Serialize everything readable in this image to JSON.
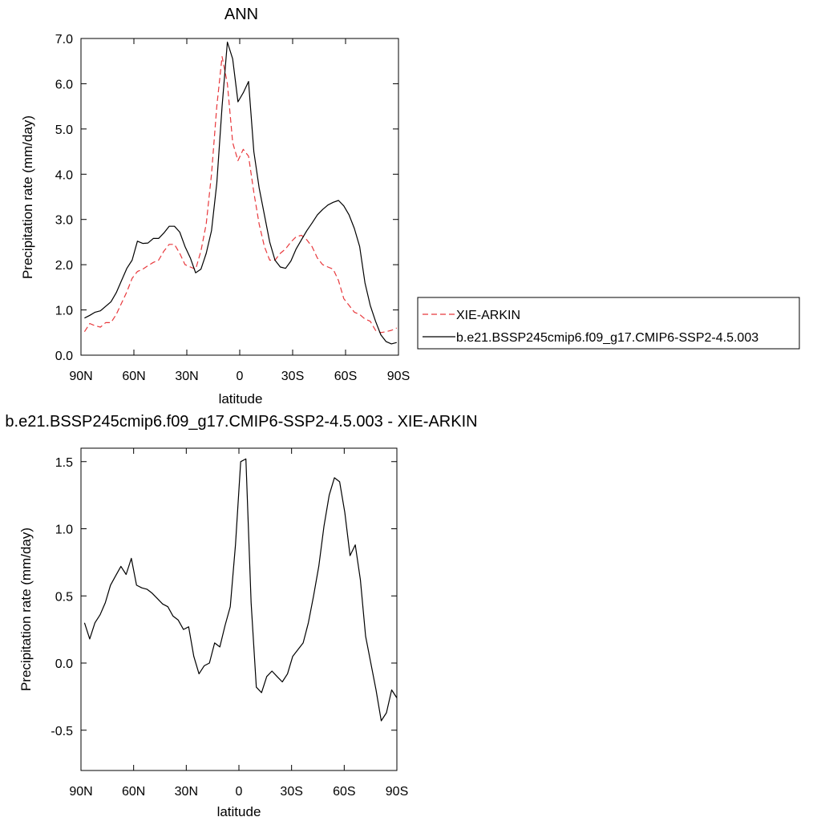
{
  "chart_data": [
    {
      "type": "line",
      "title": "ANN",
      "xlabel": "latitude",
      "ylabel": "Precipitation rate (mm/day)",
      "xlim": [
        -90,
        90
      ],
      "ylim": [
        0,
        7
      ],
      "xticks": [
        -90,
        -60,
        -30,
        0,
        30,
        60,
        90
      ],
      "xtick_labels": [
        "90N",
        "60N",
        "30N",
        "0",
        "30S",
        "60S",
        "90S"
      ],
      "yticks": [
        0,
        1,
        2,
        3,
        4,
        5,
        6,
        7
      ],
      "ytick_labels": [
        "0.0",
        "1.0",
        "2.0",
        "3.0",
        "4.0",
        "5.0",
        "6.0",
        "7.0"
      ],
      "grid": false,
      "legend": "right, outside plot",
      "x": [
        -88,
        -85,
        -82,
        -79,
        -76,
        -73,
        -70,
        -67,
        -64,
        -61,
        -58,
        -55,
        -52,
        -49,
        -46,
        -43,
        -40,
        -37,
        -34,
        -31,
        -28,
        -25,
        -22,
        -19,
        -16,
        -13,
        -10,
        -7,
        -4,
        -1,
        2,
        5,
        8,
        11,
        14,
        17,
        20,
        23,
        26,
        29,
        32,
        35,
        38,
        41,
        44,
        47,
        50,
        53,
        56,
        59,
        62,
        65,
        68,
        71,
        74,
        77,
        80,
        83,
        86,
        89
      ],
      "series": [
        {
          "name": "XIE-ARKIN",
          "color": "#e8383c",
          "dash": "dashed",
          "values": [
            0.52,
            0.7,
            0.65,
            0.62,
            0.72,
            0.72,
            0.9,
            1.15,
            1.4,
            1.7,
            1.85,
            1.9,
            1.98,
            2.05,
            2.1,
            2.3,
            2.45,
            2.45,
            2.25,
            2.0,
            1.95,
            1.9,
            2.3,
            2.9,
            4.0,
            5.5,
            6.6,
            6.0,
            4.7,
            4.3,
            4.55,
            4.4,
            3.6,
            2.9,
            2.4,
            2.1,
            2.1,
            2.25,
            2.35,
            2.5,
            2.62,
            2.65,
            2.55,
            2.4,
            2.15,
            2.0,
            1.95,
            1.9,
            1.65,
            1.25,
            1.1,
            0.95,
            0.9,
            0.8,
            0.75,
            0.55,
            0.5,
            0.52,
            0.55,
            0.6
          ]
        },
        {
          "name": "b.e21.BSSP245cmip6.f09_g17.CMIP6-SSP2-4.5.003",
          "color": "#000000",
          "dash": "solid",
          "values": [
            0.82,
            0.88,
            0.95,
            0.98,
            1.08,
            1.18,
            1.38,
            1.65,
            1.92,
            2.1,
            2.52,
            2.47,
            2.48,
            2.58,
            2.58,
            2.7,
            2.85,
            2.85,
            2.72,
            2.4,
            2.15,
            1.82,
            1.9,
            2.25,
            2.75,
            3.8,
            5.5,
            6.92,
            6.55,
            5.6,
            5.8,
            6.05,
            4.5,
            3.7,
            3.1,
            2.5,
            2.1,
            1.95,
            1.92,
            2.08,
            2.35,
            2.55,
            2.75,
            2.92,
            3.1,
            3.22,
            3.32,
            3.38,
            3.42,
            3.3,
            3.1,
            2.8,
            2.4,
            1.6,
            1.1,
            0.75,
            0.45,
            0.3,
            0.25,
            0.28
          ]
        }
      ]
    },
    {
      "type": "line",
      "title": "b.e21.BSSP245cmip6.f09_g17.CMIP6-SSP2-4.5.003 - XIE-ARKIN",
      "xlabel": "latitude",
      "ylabel": "Precipitation rate (mm/day)",
      "xlim": [
        -90,
        90
      ],
      "ylim": [
        -0.8,
        1.6
      ],
      "xticks": [
        -90,
        -60,
        -30,
        0,
        30,
        60,
        90
      ],
      "xtick_labels": [
        "90N",
        "60N",
        "30N",
        "0",
        "30S",
        "60S",
        "90S"
      ],
      "yticks": [
        -0.5,
        0,
        0.5,
        1.0,
        1.5
      ],
      "ytick_labels": [
        "-0.5",
        "0.0",
        "0.5",
        "1.0",
        "1.5"
      ],
      "grid": false,
      "series": [
        {
          "color": "#000000",
          "dash": "solid",
          "values": [
            0.3,
            0.18,
            0.3,
            0.36,
            0.45,
            0.58,
            0.65,
            0.72,
            0.66,
            0.78,
            0.58,
            0.56,
            0.55,
            0.52,
            0.48,
            0.44,
            0.42,
            0.35,
            0.32,
            0.25,
            0.27,
            0.05,
            -0.08,
            -0.02,
            0.0,
            0.15,
            0.12,
            0.28,
            0.42,
            0.88,
            1.5,
            1.52,
            0.45,
            -0.18,
            -0.22,
            -0.1,
            -0.06,
            -0.1,
            -0.14,
            -0.08,
            0.05,
            0.1,
            0.15,
            0.3,
            0.5,
            0.72,
            1.02,
            1.25,
            1.38,
            1.35,
            1.12,
            0.8,
            0.88,
            0.62,
            0.2,
            0.0,
            -0.2,
            -0.43,
            -0.37,
            -0.2,
            -0.26
          ]
        }
      ]
    }
  ]
}
